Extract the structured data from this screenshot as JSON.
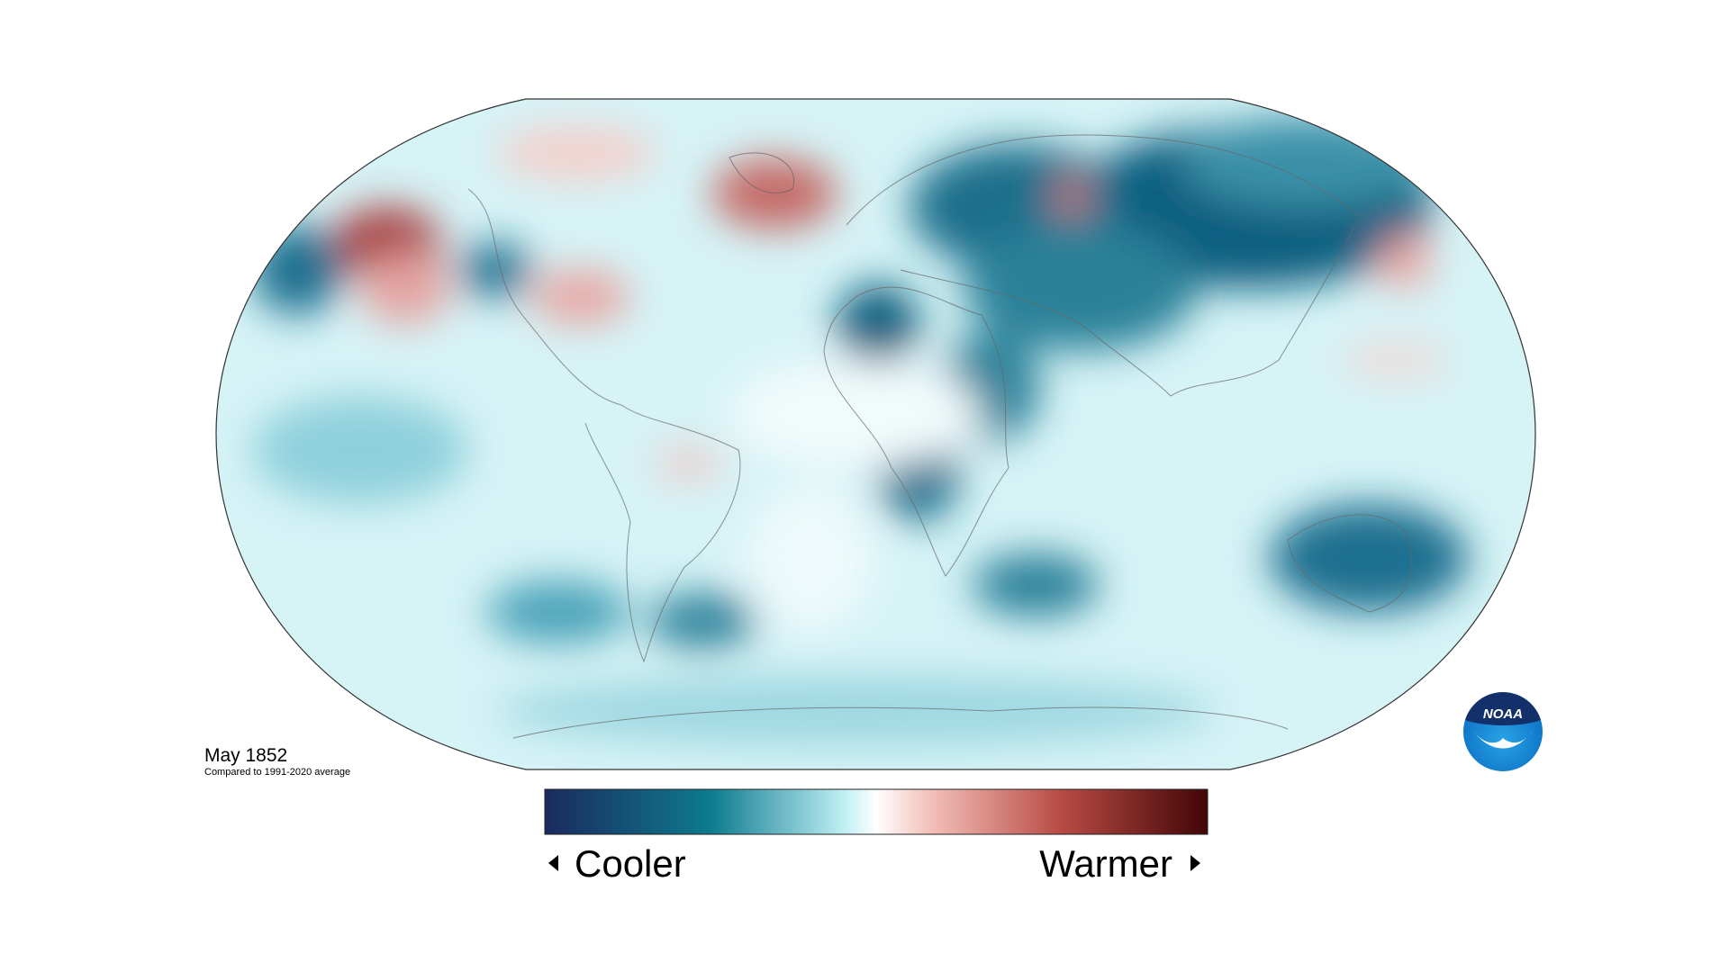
{
  "header": {
    "title": "May 1852",
    "subtitle": "Compared to 1991-2020 average"
  },
  "legend": {
    "low_label": "Cooler",
    "high_label": "Warmer"
  },
  "logo": {
    "text": "NOAA"
  }
}
